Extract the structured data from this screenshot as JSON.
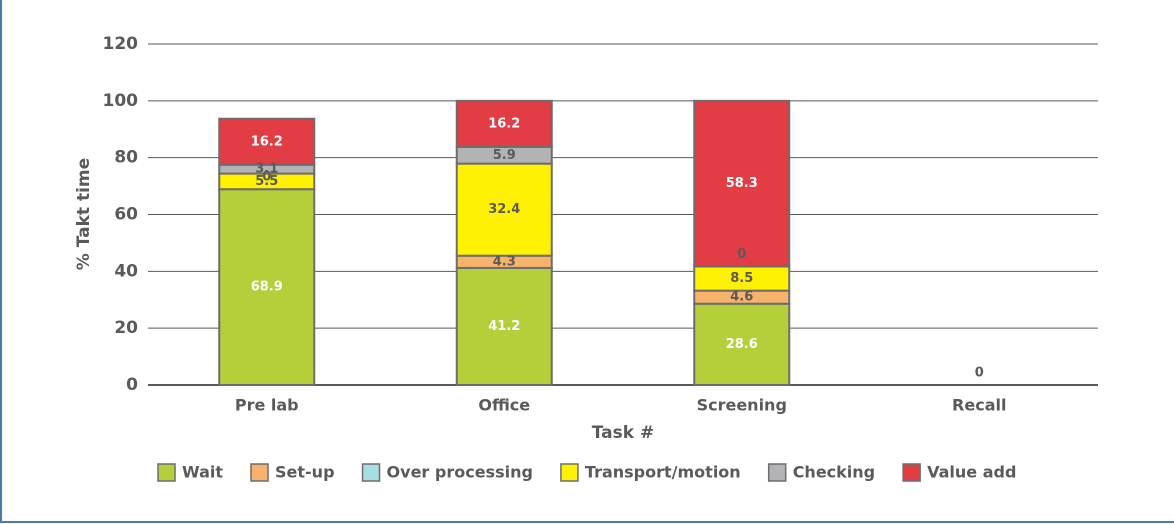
{
  "chart_data": {
    "type": "stacked_bar",
    "x_label": "Task #",
    "y_label": "% Takt time",
    "categories": [
      "Pre lab",
      "Office",
      "Screening",
      "Recall"
    ],
    "series": [
      {
        "name": "Wait",
        "color": "#b5cf3a",
        "values": [
          68.9,
          41.2,
          28.6,
          0
        ]
      },
      {
        "name": "Set-up",
        "color": "#f7b26b",
        "values": [
          0,
          4.3,
          4.6,
          null
        ]
      },
      {
        "name": "Over processing",
        "color": "#a8dde3",
        "values": [
          null,
          null,
          null,
          null
        ]
      },
      {
        "name": "Transport/motion",
        "color": "#fff200",
        "values": [
          5.5,
          32.4,
          8.5,
          null
        ]
      },
      {
        "name": "Checking",
        "color": "#b3b3b5",
        "values": [
          3.1,
          5.9,
          0,
          null
        ]
      },
      {
        "name": "Value add",
        "color": "#e23c44",
        "values": [
          16.2,
          16.2,
          58.3,
          null
        ]
      }
    ],
    "ylim": [
      0,
      120
    ],
    "yticks": [
      0,
      20,
      40,
      60,
      80,
      100,
      120
    ],
    "grid": true,
    "legend": "bottom"
  }
}
